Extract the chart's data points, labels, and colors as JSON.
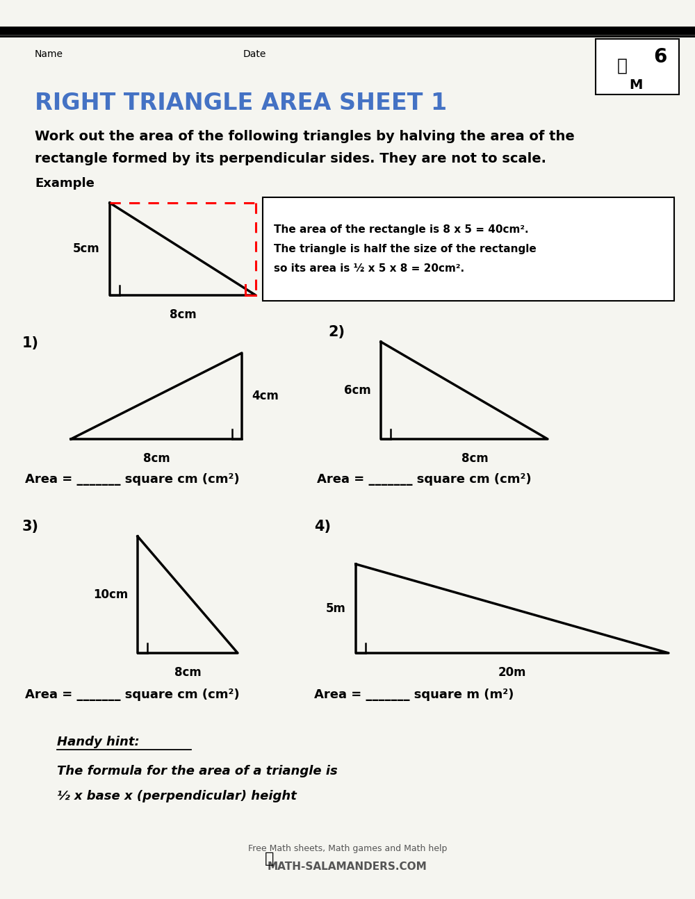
{
  "title": "RIGHT TRIANGLE AREA SHEET 1",
  "title_color": "#4472C4",
  "bg_color": "#f5f5f0",
  "name_label": "Name",
  "date_label": "Date",
  "instruction_line1": "Work out the area of the following triangles by halving the area of the",
  "instruction_line2": "rectangle formed by its perpendicular sides. They are not to scale.",
  "example_label": "Example",
  "example_box_line1": "The area of the rectangle is 8 x 5 = 40cm².",
  "example_box_line2": "The triangle is half the size of the rectangle",
  "example_box_line3": "so its area is ½ x 5 x 8 = 20cm².",
  "area_label_cm": "Area = _______ square cm (cm²)",
  "area_label_m": "Area = _______ square m (m²)",
  "hint_title": "Handy hint:",
  "hint_line1": "The formula for the area of a triangle is",
  "hint_line2": "½ x base x (perpendicular) height",
  "footer_line1": "Free Math sheets, Math games and Math help",
  "footer_line2": "MATH-SALAMANDERS.COM",
  "p1_height": "4cm",
  "p1_base": "8cm",
  "p2_height": "6cm",
  "p2_base": "8cm",
  "p3_height": "10cm",
  "p3_base": "8cm",
  "p4_height": "5m",
  "p4_base": "20m",
  "num1": "1)",
  "num2": "2)",
  "num3": "3)",
  "num4": "4)"
}
